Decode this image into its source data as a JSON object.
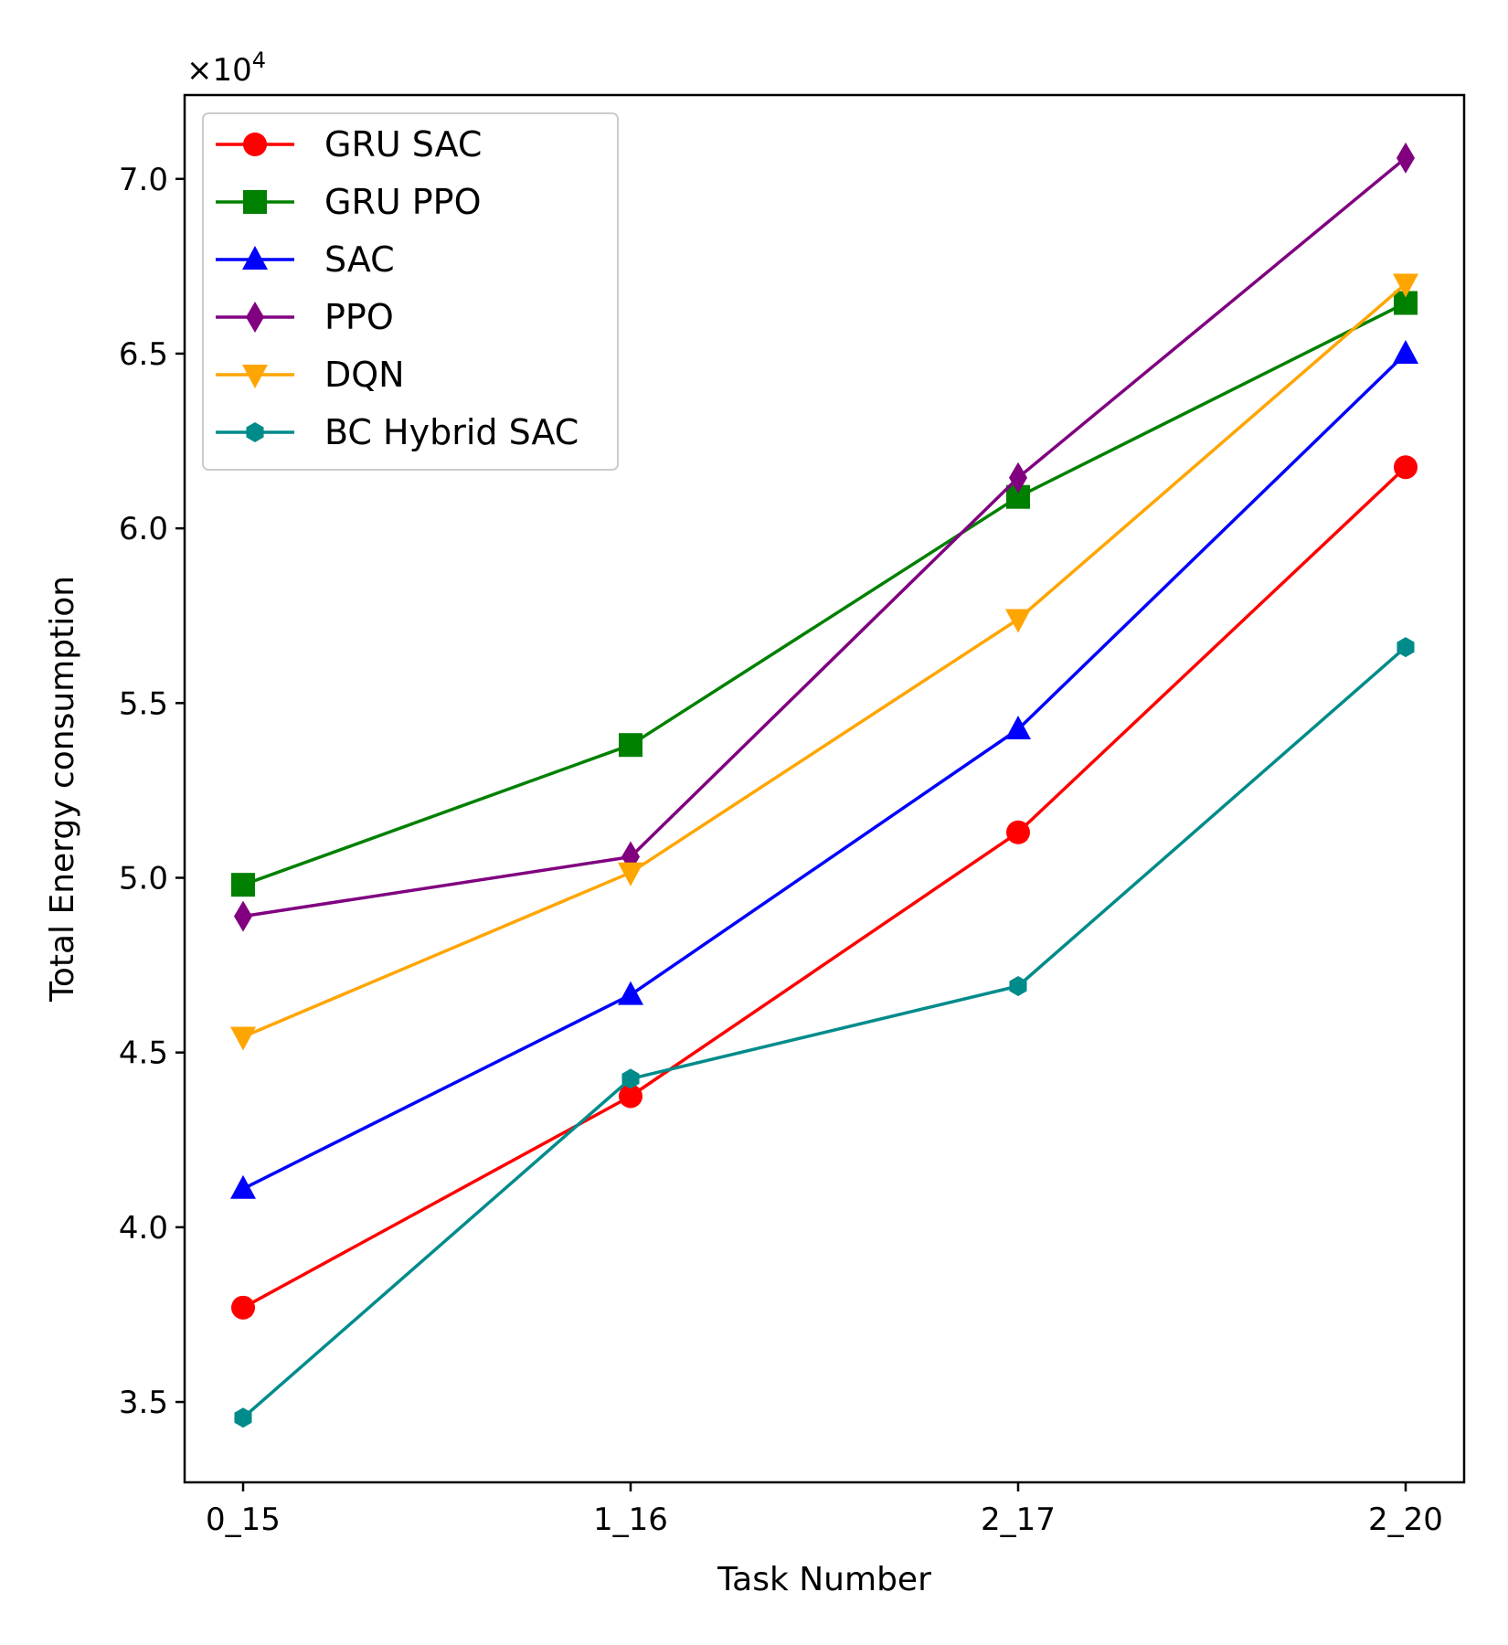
{
  "chart_data": {
    "type": "line",
    "title": "",
    "xlabel": "Task Number",
    "ylabel": "Total Energy consumption",
    "y_multiplier_label": "×10",
    "y_multiplier_exponent": "4",
    "categories": [
      "0_15",
      "1_16",
      "2_17",
      "2_20"
    ],
    "ylim": [
      32700,
      72400
    ],
    "yticks": [
      35000,
      40000,
      45000,
      50000,
      55000,
      60000,
      65000,
      70000
    ],
    "ytick_labels": [
      "3.5",
      "4.0",
      "4.5",
      "5.0",
      "5.5",
      "6.0",
      "6.5",
      "7.0"
    ],
    "grid": false,
    "legend_position": "upper-left",
    "series": [
      {
        "name": "GRU SAC",
        "color": "#ff0000",
        "marker": "circle",
        "values": [
          37700,
          43750,
          51300,
          61750
        ]
      },
      {
        "name": "GRU PPO",
        "color": "#008000",
        "marker": "square",
        "values": [
          49800,
          53800,
          60900,
          66450
        ]
      },
      {
        "name": "SAC",
        "color": "#0000ff",
        "marker": "triangle-up",
        "values": [
          41100,
          46650,
          54250,
          65000
        ]
      },
      {
        "name": "PPO",
        "color": "#800080",
        "marker": "diamond",
        "values": [
          48900,
          50600,
          61450,
          70600
        ]
      },
      {
        "name": "DQN",
        "color": "#ffa500",
        "marker": "triangle-down",
        "values": [
          45450,
          50150,
          57400,
          67000
        ]
      },
      {
        "name": "BC Hybrid SAC",
        "color": "#008b8b",
        "marker": "hexagon",
        "values": [
          34550,
          44250,
          46900,
          56600
        ]
      }
    ]
  }
}
